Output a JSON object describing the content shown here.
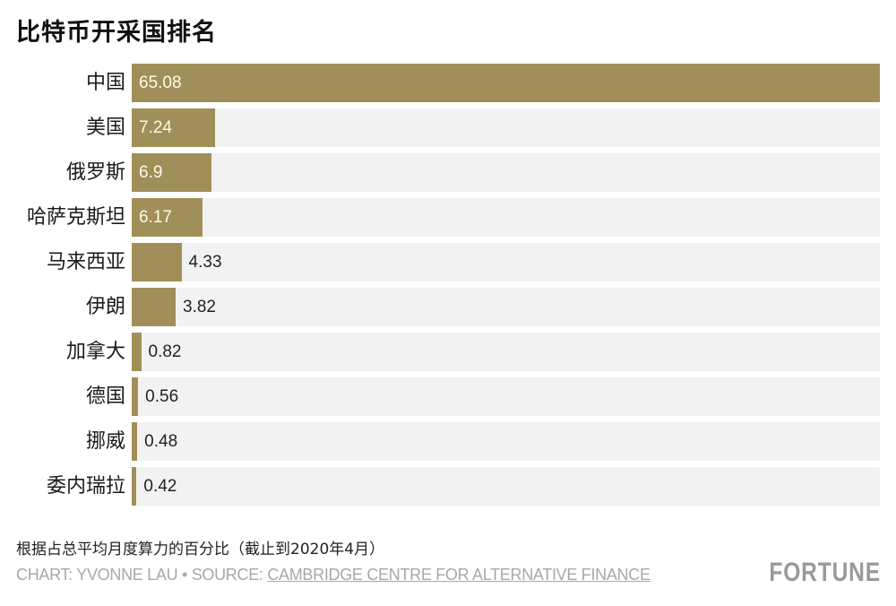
{
  "title": "比特币开采国排名",
  "note": "根据占总平均月度算力的百分比（截止到2020年4月）",
  "credit": {
    "prefix": "CHART: YVONNE LAU • SOURCE: ",
    "source": "CAMBRIDGE CENTRE FOR ALTERNATIVE FINANCE"
  },
  "logo": "FORTUNE",
  "colors": {
    "bar": "#a08f58",
    "track": "#f2f2f2"
  },
  "chart_data": {
    "type": "bar",
    "orientation": "horizontal",
    "title": "比特币开采国排名",
    "subtitle": "根据占总平均月度算力的百分比（截止到2020年4月）",
    "categories": [
      "中国",
      "美国",
      "俄罗斯",
      "哈萨克斯坦",
      "马来西亚",
      "伊朗",
      "加拿大",
      "德国",
      "挪威",
      "委内瑞拉"
    ],
    "values": [
      65.08,
      7.24,
      6.9,
      6.17,
      4.33,
      3.82,
      0.82,
      0.56,
      0.48,
      0.42
    ],
    "value_labels": [
      "65.08",
      "7.24",
      "6.9",
      "6.17",
      "4.33",
      "3.82",
      "0.82",
      "0.56",
      "0.48",
      "0.42"
    ],
    "xlabel": "",
    "ylabel": "",
    "xlim": [
      0,
      65.08
    ],
    "grid": false,
    "legend": null
  }
}
